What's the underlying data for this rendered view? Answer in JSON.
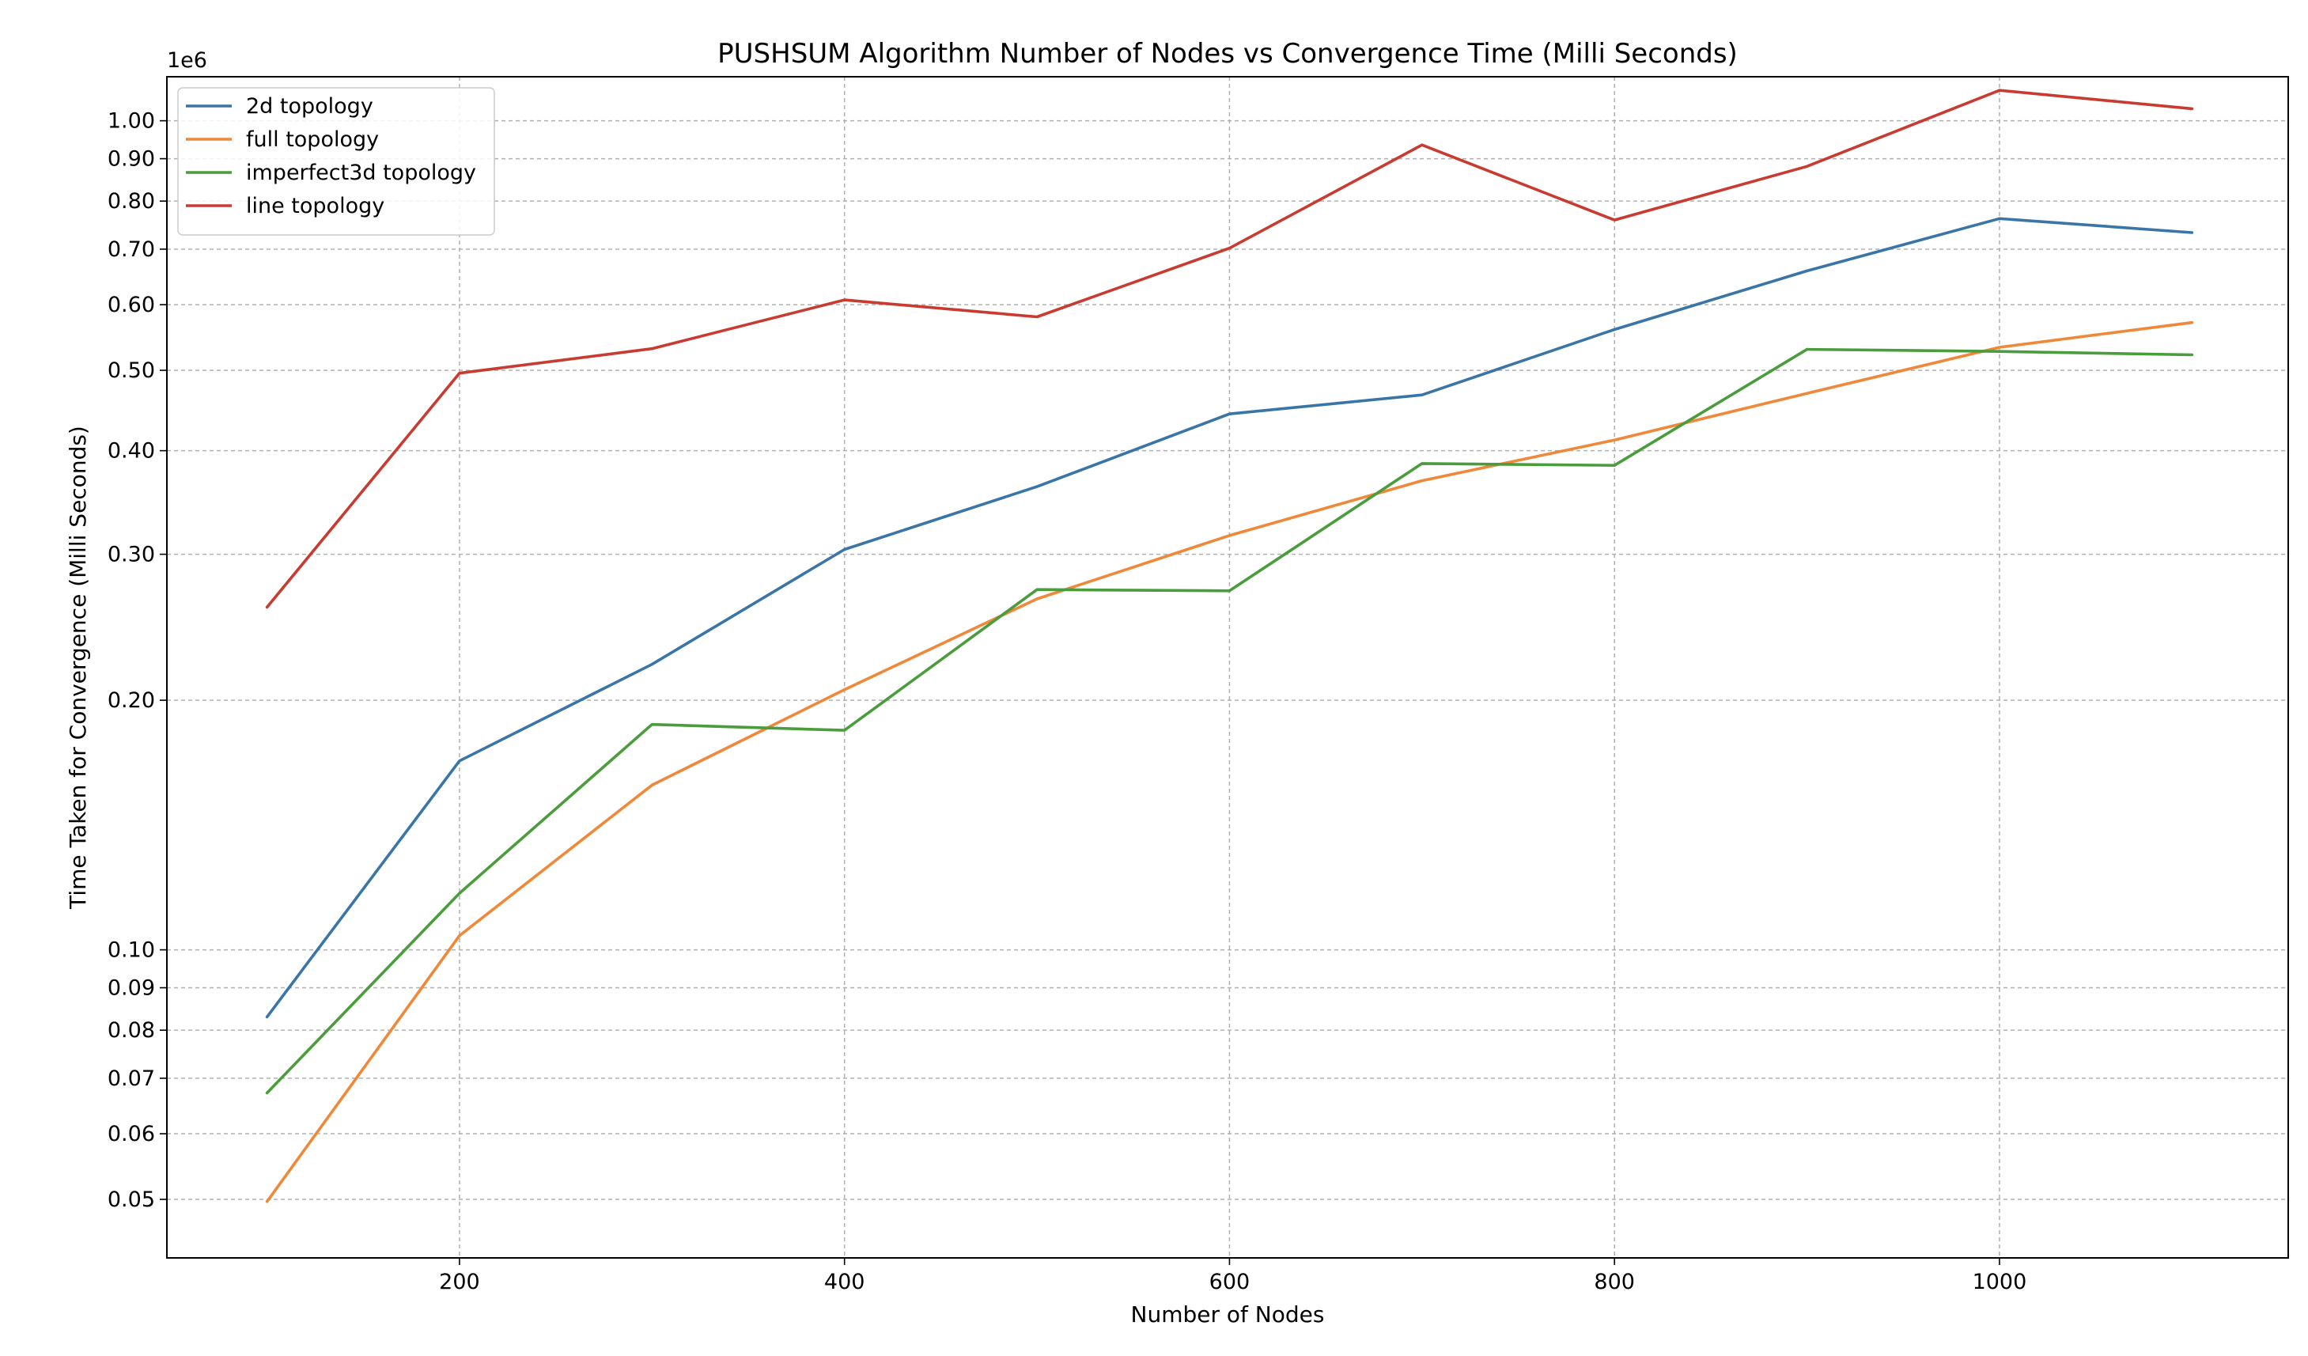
{
  "chart_data": {
    "type": "line",
    "title": "PUSHSUM Algorithm Number of Nodes vs Convergence Time (Milli Seconds)",
    "xlabel": "Number of Nodes",
    "ylabel": "Time Taken for Convergence (Milli Seconds)",
    "y_scale": "log",
    "y_offset_label": "1e6",
    "x": [
      100,
      200,
      300,
      400,
      500,
      600,
      700,
      800,
      900,
      1000,
      1100
    ],
    "xlim": [
      48,
      1150
    ],
    "ylim": [
      0.0425,
      1.13
    ],
    "x_ticks": [
      200,
      400,
      600,
      800,
      1000
    ],
    "x_tick_labels": [
      "200",
      "400",
      "600",
      "800",
      "1000"
    ],
    "y_ticks": [
      0.05,
      0.06,
      0.07,
      0.08,
      0.09,
      0.1,
      0.2,
      0.3,
      0.4,
      0.5,
      0.6,
      0.7,
      0.8,
      0.9,
      1.0
    ],
    "y_tick_labels": [
      "0.05",
      "0.06",
      "0.07",
      "0.08",
      "0.09",
      "0.10",
      "0.20",
      "0.30",
      "0.40",
      "0.50",
      "0.60",
      "0.70",
      "0.80",
      "0.90",
      "1.00"
    ],
    "grid": true,
    "legend_position": "top-left",
    "series": [
      {
        "name": "2d topology",
        "color": "#3a75a8",
        "values": [
          0.083,
          0.169,
          0.221,
          0.304,
          0.362,
          0.443,
          0.467,
          0.56,
          0.659,
          0.762,
          0.733
        ]
      },
      {
        "name": "full topology",
        "color": "#f0883a",
        "values": [
          0.0497,
          0.104,
          0.158,
          0.206,
          0.265,
          0.316,
          0.368,
          0.412,
          0.469,
          0.533,
          0.571
        ]
      },
      {
        "name": "imperfect3d topology",
        "color": "#4a9c3c",
        "values": [
          0.0672,
          0.117,
          0.187,
          0.184,
          0.272,
          0.271,
          0.386,
          0.384,
          0.53,
          0.527,
          0.522
        ]
      },
      {
        "name": "line topology",
        "color": "#c93b31",
        "values": [
          0.259,
          0.496,
          0.531,
          0.608,
          0.58,
          0.702,
          0.935,
          0.759,
          0.881,
          1.088,
          1.034
        ]
      }
    ]
  }
}
